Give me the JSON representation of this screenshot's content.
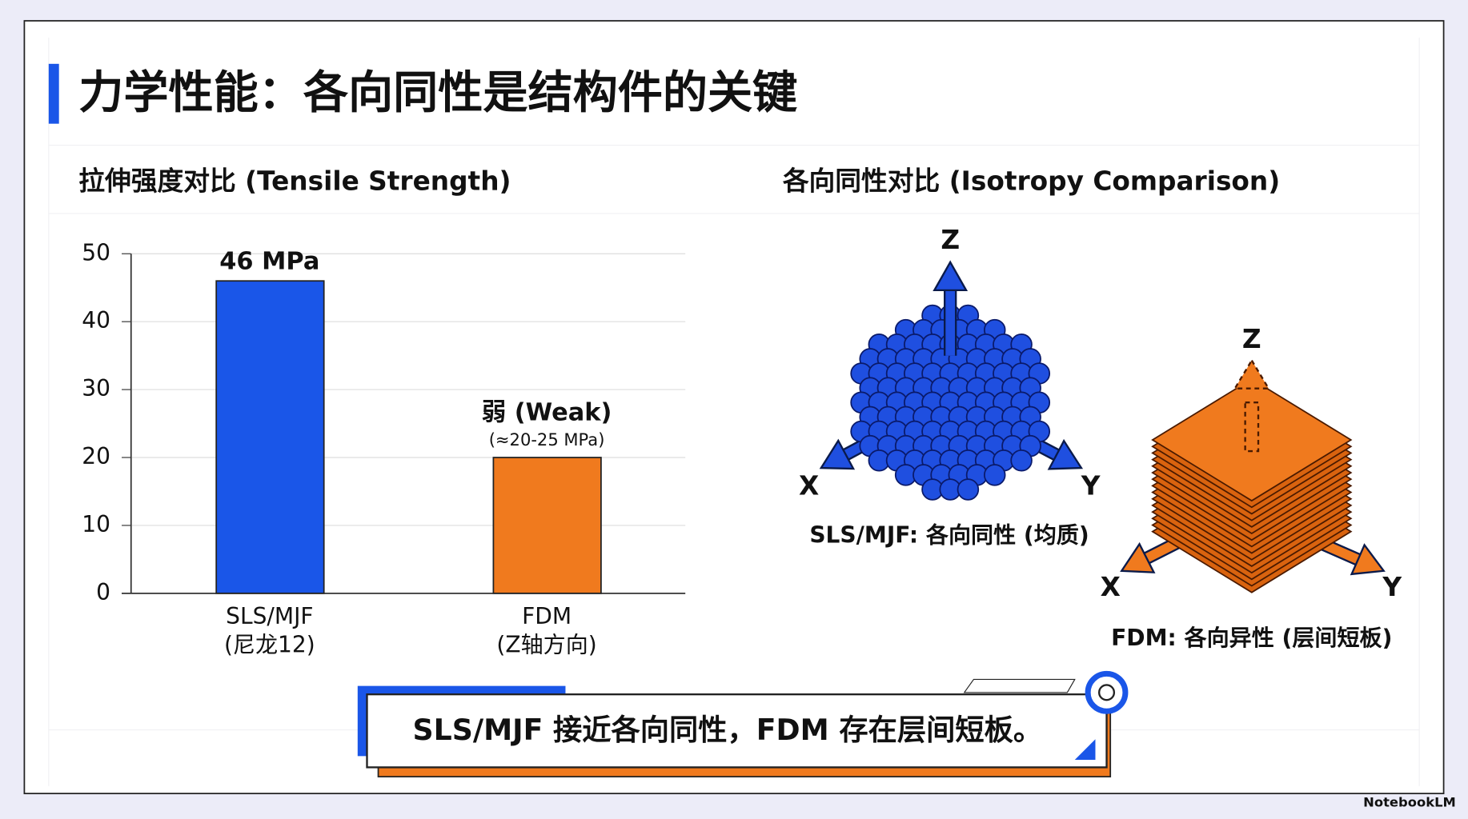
{
  "slide": {
    "title": "力学性能：各向同性是结构件的关键",
    "callout": "SLS/MJF 接近各向同性，FDM 存在层间短板。",
    "footer": "NotebookLM"
  },
  "chart_data": {
    "type": "bar",
    "title": "拉伸强度对比 (Tensile Strength)",
    "categories": [
      "SLS/MJF",
      "FDM"
    ],
    "category_notes": [
      "(尼龙12)",
      "(Z轴方向)"
    ],
    "series": [
      {
        "name": "SLS/MJF",
        "color": "#1a56e8",
        "values": [
          46,
          null
        ],
        "value_labels": [
          "46 MPa",
          null
        ]
      },
      {
        "name": "FDM",
        "color": "#f07a1e",
        "values": [
          null,
          20
        ]
      }
    ],
    "annotations": [
      "弱 (Weak)",
      "(≈20-25 MPa)"
    ],
    "ylim": [
      0,
      50
    ],
    "yticks": [
      0,
      10,
      20,
      30,
      40,
      50
    ],
    "grid": true
  },
  "isotropy": {
    "title": "各向同性对比 (Isotropy Comparison)",
    "sls": {
      "z": "Z",
      "x": "X",
      "y": "Y",
      "caption": "SLS/MJF: 各向同性 (均质)"
    },
    "fdm": {
      "z": "Z",
      "x": "X",
      "y": "Y",
      "caption": "FDM: 各向异性 (层间短板)"
    }
  }
}
